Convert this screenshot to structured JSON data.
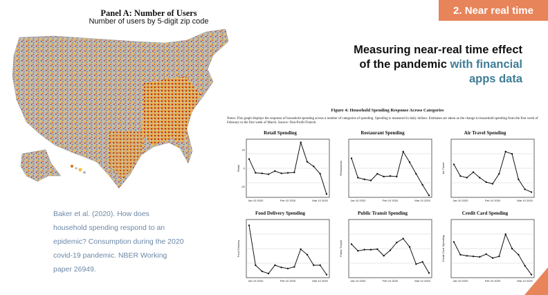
{
  "section_tag": "2. Near real time",
  "map_panel": {
    "title": "Panel A: Number of Users",
    "subtitle": "Number of users by 5-digit zip code"
  },
  "heading": {
    "line1": "Measuring near-real time effect",
    "line2_plain": "of the pandemic ",
    "line2_highlight": "with financial",
    "line3_highlight": "apps data"
  },
  "citation": "Baker et al. (2020). How does household spending respond to an epidemic? Consumption during the 2020 covid-19 pandemic. NBER Working paper 26949.",
  "figure": {
    "caption": "Figure 4: Household Spending Response Across Categories",
    "note": "Notes: This graph displays the response of household spending across a number of categories of spending. Spending is measured in daily dollars. Estimates are taken as the change in household spending from the first week of February to the first week of March. Source: Non-Profit Fintech."
  },
  "colors": {
    "accent_orange": "#e8845a",
    "heading_highlight": "#3f7d95",
    "citation_text": "#6b87a6",
    "map_gray": "#b9b9b9",
    "map_yellow": "#f5c242",
    "map_orange": "#e07a1f",
    "map_red": "#b3200f"
  },
  "chart_data": [
    {
      "type": "line",
      "title": "Retail Spending",
      "ylabel": "Retail",
      "x_ticks": [
        "Jan 10 2020",
        "Feb 10 2020",
        "Mar 10 2020"
      ],
      "y_ticks": [
        "-20",
        "0",
        "20"
      ],
      "ylim": [
        -30,
        30
      ],
      "values": [
        10,
        -5,
        -5.5,
        -6.5,
        -3,
        -5.5,
        -5,
        -4.5,
        28,
        7,
        2,
        -6,
        -28
      ]
    },
    {
      "type": "line",
      "title": "Restaurant Spending",
      "ylabel": "Restaurants",
      "x_ticks": [
        "Jan 10 2020",
        "Feb 10 2020",
        "Mar 10 2020"
      ],
      "y_ticks": [],
      "ylim": [
        0,
        10
      ],
      "values": [
        6.8,
        3.3,
        3.0,
        2.8,
        4.0,
        3.5,
        3.6,
        3.5,
        8.0,
        6.1,
        4.0,
        2.0,
        0.1
      ]
    },
    {
      "type": "line",
      "title": "Air Travel Spending",
      "ylabel": "Air Travel",
      "x_ticks": [
        "Jan 10 2020",
        "Feb 10 2020",
        "Mar 10 2020"
      ],
      "y_ticks": [],
      "ylim": [
        0,
        10
      ],
      "values": [
        5.7,
        3.6,
        3.3,
        4.3,
        3.3,
        2.5,
        2.2,
        4.0,
        8.0,
        7.6,
        3.0,
        1.2,
        0.7
      ]
    },
    {
      "type": "line",
      "title": "Food Delivery Spending",
      "ylabel": "Food Delivery",
      "x_ticks": [
        "Jan 10 2020",
        "Feb 10 2020",
        "Mar 10 2020"
      ],
      "y_ticks": [],
      "ylim": [
        0,
        10
      ],
      "values": [
        9.2,
        2.0,
        0.9,
        0.5,
        2.0,
        1.6,
        1.4,
        1.7,
        4.9,
        3.9,
        2.0,
        2.0,
        0.3
      ]
    },
    {
      "type": "line",
      "title": "Public Transit Spending",
      "ylabel": "Public Transit",
      "x_ticks": [
        "Jan 10 2020",
        "Feb 10 2020",
        "Mar 10 2020"
      ],
      "y_ticks": [],
      "ylim": [
        0,
        10
      ],
      "values": [
        5.8,
        4.6,
        4.8,
        4.8,
        4.9,
        3.7,
        4.7,
        6.1,
        6.8,
        5.3,
        2.2,
        2.6,
        0.6
      ]
    },
    {
      "type": "line",
      "title": "Credit Card Spending",
      "ylabel": "Credit Card Spending",
      "x_ticks": [
        "Jan 10 2020",
        "Feb 10 2020",
        "Mar 10 2020"
      ],
      "y_ticks": [],
      "ylim": [
        0,
        10
      ],
      "values": [
        6.2,
        3.9,
        3.7,
        3.6,
        3.5,
        4.0,
        3.3,
        3.6,
        7.6,
        5.0,
        3.9,
        1.9,
        0.3
      ]
    }
  ]
}
